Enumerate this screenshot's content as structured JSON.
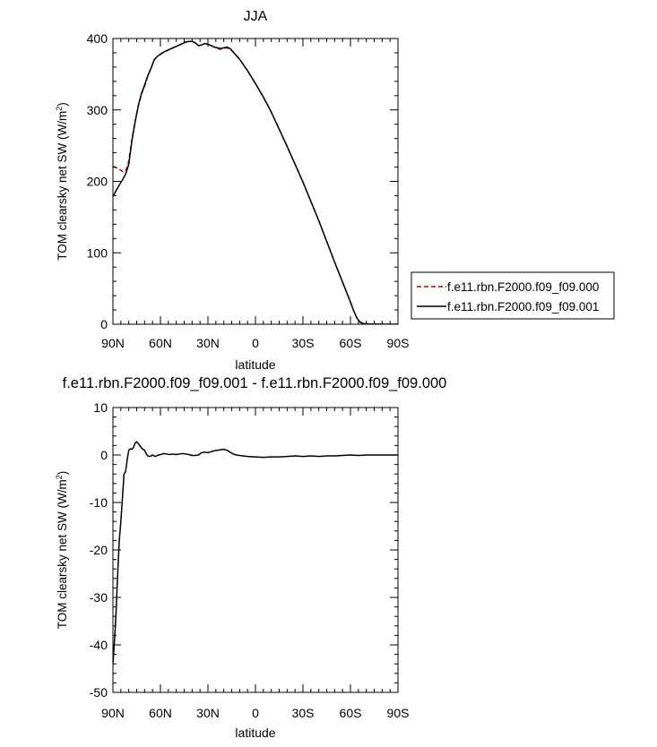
{
  "chart_data": [
    {
      "type": "line",
      "title": "JJA",
      "xlabel": "latitude",
      "ylabel": "TOM clearsky net SW (W/m",
      "ylabel_sup": "2",
      "ylabel_close": ")",
      "xlim": [
        90,
        -90
      ],
      "ylim": [
        0,
        400
      ],
      "xticks": [
        90,
        60,
        30,
        0,
        -30,
        -60,
        -90
      ],
      "xtick_labels": [
        "90N",
        "60N",
        "30N",
        "0",
        "30S",
        "60S",
        "90S"
      ],
      "yticks": [
        0,
        100,
        200,
        300,
        400
      ],
      "ytick_labels": [
        "0",
        "100",
        "200",
        "300",
        "400"
      ],
      "legend_position": "right",
      "series": [
        {
          "name": "f.e11.rbn.F2000.f09_f09.000",
          "color": "#cc0000",
          "dash": "dashed",
          "x": [
            90,
            88,
            86,
            84,
            82,
            80,
            78,
            76,
            74,
            72,
            70,
            68,
            66,
            64,
            62,
            60,
            58,
            56,
            54,
            52,
            50,
            48,
            46,
            44,
            42,
            40,
            38,
            36,
            34,
            32,
            30,
            28,
            26,
            24,
            22,
            20,
            18,
            16,
            14,
            12,
            10,
            5,
            0,
            -5,
            -10,
            -15,
            -20,
            -25,
            -30,
            -35,
            -40,
            -45,
            -50,
            -55,
            -60,
            -62,
            -64,
            -66,
            -68,
            -70,
            -74,
            -78,
            -82,
            -86,
            -90
          ],
          "y": [
            221,
            219,
            217,
            214,
            214,
            228,
            259,
            284,
            305,
            322,
            333,
            347,
            358,
            370,
            375,
            378,
            381,
            383,
            385,
            387,
            389,
            391,
            393,
            395,
            396,
            396,
            394,
            390,
            391,
            393,
            392,
            390,
            388,
            386,
            385,
            386,
            387,
            385,
            381,
            376,
            371,
            355,
            337,
            318,
            297,
            273,
            249,
            224,
            199,
            172,
            145,
            116,
            87,
            59,
            31,
            19,
            9,
            3,
            1,
            0.5,
            0.2,
            0.1,
            0,
            0,
            0
          ]
        },
        {
          "name": "f.e11.rbn.F2000.f09_f09.001",
          "color": "#000000",
          "dash": "solid",
          "x": [
            90,
            88,
            86,
            84,
            82,
            80,
            78,
            76,
            74,
            72,
            70,
            68,
            66,
            64,
            62,
            60,
            58,
            56,
            54,
            52,
            50,
            48,
            46,
            44,
            42,
            40,
            38,
            36,
            34,
            32,
            30,
            28,
            26,
            24,
            22,
            20,
            18,
            16,
            14,
            12,
            10,
            5,
            0,
            -5,
            -10,
            -15,
            -20,
            -25,
            -30,
            -35,
            -40,
            -45,
            -50,
            -55,
            -60,
            -62,
            -64,
            -66,
            -68,
            -70,
            -74,
            -78,
            -82,
            -86,
            -90
          ],
          "y": [
            179,
            187,
            195,
            202,
            210,
            224,
            257,
            283,
            306,
            323,
            335,
            348,
            358,
            370,
            375,
            378,
            381,
            383,
            385,
            387,
            389,
            391,
            393,
            395,
            396,
            396,
            394,
            390,
            391,
            393,
            392,
            390,
            388,
            387,
            386,
            387,
            388,
            386,
            381,
            376,
            371,
            355,
            337,
            318,
            297,
            273,
            249,
            224,
            199,
            172,
            145,
            116,
            87,
            59,
            31,
            19,
            9,
            3,
            1,
            0.5,
            0.2,
            0.1,
            0,
            0,
            0
          ]
        }
      ]
    },
    {
      "type": "line",
      "title": "f.e11.rbn.F2000.f09_f09.001 - f.e11.rbn.F2000.f09_f09.000",
      "xlabel": "latitude",
      "ylabel": "TOM clearsky net SW (W/m",
      "ylabel_sup": "2",
      "ylabel_close": ")",
      "xlim": [
        90,
        -90
      ],
      "ylim": [
        -50,
        10
      ],
      "xticks": [
        90,
        60,
        30,
        0,
        -30,
        -60,
        -90
      ],
      "xtick_labels": [
        "90N",
        "60N",
        "30N",
        "0",
        "30S",
        "60S",
        "90S"
      ],
      "yticks": [
        -50,
        -40,
        -30,
        -20,
        -10,
        0,
        10
      ],
      "ytick_labels": [
        "-50",
        "-40",
        "-30",
        "-20",
        "-10",
        "0",
        "10"
      ],
      "series": [
        {
          "color": "#000000",
          "dash": "solid",
          "x": [
            90,
            89,
            88,
            87,
            86,
            85,
            84,
            83,
            82,
            81,
            80,
            79,
            78,
            77,
            76,
            75,
            74,
            73,
            72,
            71,
            70,
            69,
            68,
            67,
            66,
            65,
            64,
            63,
            62,
            61,
            60,
            58,
            56,
            54,
            52,
            50,
            48,
            46,
            44,
            42,
            40,
            38,
            36,
            34,
            32,
            30,
            28,
            26,
            24,
            22,
            20,
            18,
            16,
            14,
            12,
            10,
            5,
            0,
            -5,
            -10,
            -15,
            -20,
            -25,
            -30,
            -35,
            -40,
            -45,
            -50,
            -55,
            -60,
            -65,
            -70,
            -75,
            -80,
            -85,
            -90
          ],
          "y": [
            -44,
            -39,
            -33,
            -25,
            -18,
            -14,
            -9,
            -4,
            -3.5,
            -1,
            1,
            1.3,
            1.2,
            1.6,
            2.5,
            2.8,
            2.4,
            2.0,
            1.5,
            1.2,
            1.0,
            0.3,
            -0.2,
            -0.3,
            -0.2,
            0.0,
            -0.2,
            -0.3,
            -0.1,
            0.0,
            0.1,
            0.3,
            0.2,
            0.1,
            0.2,
            0.1,
            0.2,
            0.3,
            0.2,
            0.1,
            -0.1,
            -0.1,
            0.0,
            0.5,
            0.6,
            0.5,
            0.7,
            0.9,
            1.0,
            1.1,
            1.2,
            1.0,
            0.6,
            0.2,
            0.0,
            -0.1,
            -0.3,
            -0.4,
            -0.5,
            -0.4,
            -0.4,
            -0.3,
            -0.2,
            -0.3,
            -0.2,
            -0.3,
            -0.2,
            -0.2,
            -0.1,
            0.0,
            -0.1,
            0.0,
            0.0,
            0.0,
            0.0,
            0.0
          ]
        }
      ]
    }
  ]
}
